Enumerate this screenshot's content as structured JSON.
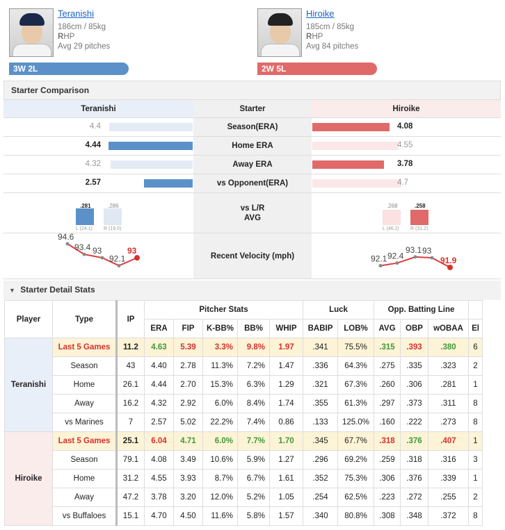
{
  "home": {
    "name": "Teranishi",
    "size": "186cm / 85kg",
    "hand_bold": "R",
    "hand_rest": "HP",
    "avg": "Avg 29 pitches",
    "record": "3W 2L",
    "color": "#5b91c8"
  },
  "away": {
    "name": "Hiroike",
    "size": "185cm / 85kg",
    "hand_bold": "R",
    "hand_rest": "HP",
    "avg": "Avg 84 pitches",
    "record": "2W 5L",
    "color": "#e06a6a"
  },
  "comparison": {
    "title": "Starter Comparison",
    "col_left": "Teranishi",
    "col_mid": "Starter",
    "col_right": "Hiroike",
    "rows": [
      {
        "label": "Season(ERA)",
        "left": "4.4",
        "right": "4.08",
        "left_bold": false,
        "right_bold": true
      },
      {
        "label": "Home ERA",
        "left": "4.44",
        "right": "4.55",
        "left_bold": true,
        "right_bold": false
      },
      {
        "label": "Away ERA",
        "left": "4.32",
        "right": "3.78",
        "left_bold": false,
        "right_bold": true
      },
      {
        "label": "vs Opponent(ERA)",
        "left": "2.57",
        "right": "4.7",
        "left_bold": true,
        "right_bold": false
      }
    ],
    "lr_label1": "vs L/R",
    "lr_label2": "AVG",
    "lr_left": {
      "l_val": ".281",
      "l_sub": "L (24.1)",
      "r_val": ".286",
      "r_sub": "R (19.0)"
    },
    "lr_right": {
      "l_val": ".268",
      "l_sub": "L (46.2)",
      "r_val": ".258",
      "r_sub": "R (31.2)"
    },
    "velocity_label": "Recent Velocity (mph)",
    "velocity_left": [
      "94.6",
      "93.4",
      "93",
      "92.1",
      "93"
    ],
    "velocity_right": [
      "92.1",
      "92.4",
      "93.1",
      "93",
      "91.9"
    ]
  },
  "detail": {
    "title": "Starter Detail Stats",
    "h_player": "Player",
    "h_type": "Type",
    "h_ip": "IP",
    "g_pitcher": "Pitcher Stats",
    "g_luck": "Luck",
    "g_opp": "Opp. Batting Line",
    "cols": [
      "ERA",
      "FIP",
      "K-BB%",
      "BB%",
      "WHIP",
      "BABIP",
      "LOB%",
      "AVG",
      "OBP",
      "wOBAA",
      "El"
    ],
    "teranishi": [
      {
        "type": "Last 5 Games",
        "ip": "11.2",
        "vals": [
          "4.63",
          "5.39",
          "3.3%",
          "9.8%",
          "1.97",
          ".341",
          "75.5%",
          ".315",
          ".393",
          ".380",
          "6"
        ]
      },
      {
        "type": "Season",
        "ip": "43",
        "vals": [
          "4.40",
          "2.78",
          "11.3%",
          "7.2%",
          "1.47",
          ".336",
          "64.3%",
          ".275",
          ".335",
          ".323",
          "2"
        ]
      },
      {
        "type": "Home",
        "ip": "26.1",
        "vals": [
          "4.44",
          "2.70",
          "15.3%",
          "6.3%",
          "1.29",
          ".321",
          "67.3%",
          ".260",
          ".306",
          ".281",
          "1"
        ]
      },
      {
        "type": "Away",
        "ip": "16.2",
        "vals": [
          "4.32",
          "2.92",
          "6.0%",
          "8.4%",
          "1.74",
          ".355",
          "61.3%",
          ".297",
          ".373",
          ".311",
          "8"
        ]
      },
      {
        "type": "vs Marines",
        "ip": "7",
        "vals": [
          "2.57",
          "5.02",
          "22.2%",
          "7.4%",
          "0.86",
          ".133",
          "125.0%",
          ".160",
          ".222",
          ".273",
          "8"
        ]
      }
    ],
    "hiroike": [
      {
        "type": "Last 5 Games",
        "ip": "25.1",
        "vals": [
          "6.04",
          "4.71",
          "6.0%",
          "7.7%",
          "1.70",
          ".345",
          "67.7%",
          ".318",
          ".376",
          ".407",
          "1"
        ]
      },
      {
        "type": "Season",
        "ip": "79.1",
        "vals": [
          "4.08",
          "3.49",
          "10.6%",
          "5.9%",
          "1.27",
          ".296",
          "69.2%",
          ".259",
          ".318",
          ".316",
          "3"
        ]
      },
      {
        "type": "Home",
        "ip": "31.2",
        "vals": [
          "4.55",
          "3.93",
          "8.7%",
          "6.7%",
          "1.61",
          ".352",
          "75.3%",
          ".306",
          ".376",
          ".339",
          "1"
        ]
      },
      {
        "type": "Away",
        "ip": "47.2",
        "vals": [
          "3.78",
          "3.20",
          "12.0%",
          "5.2%",
          "1.05",
          ".254",
          "62.5%",
          ".223",
          ".272",
          ".255",
          "2"
        ]
      },
      {
        "type": "vs Buffaloes",
        "ip": "15.1",
        "vals": [
          "4.70",
          "4.50",
          "11.6%",
          "5.8%",
          "1.57",
          ".340",
          "80.8%",
          ".308",
          ".348",
          ".372",
          "8"
        ]
      }
    ]
  }
}
